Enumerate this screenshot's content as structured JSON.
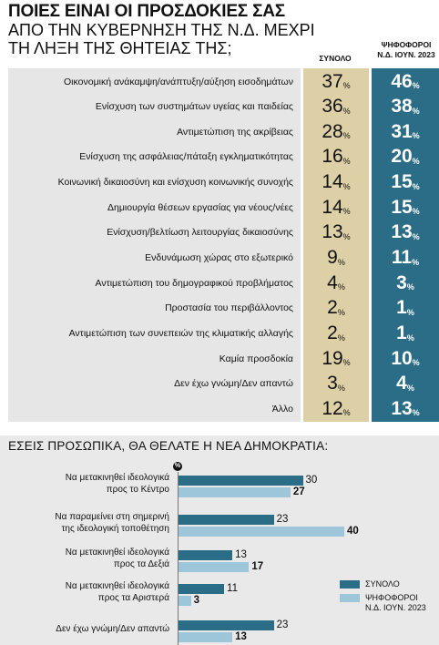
{
  "header": {
    "title_line1": "ΠΟΙΕΣ ΕΙΝΑΙ ΟΙ ΠΡΟΣΔΟΚΙΕΣ ΣΑΣ",
    "title_line2": "ΑΠΟ ΤΗΝ ΚΥΒΕΡΝΗΣΗ ΤΗΣ Ν.Δ. ΜΕΧΡΙ",
    "title_line3": "ΤΗ ΛΗΞΗ ΤΗΣ ΘΗΤΕΙΑΣ ΤΗΣ;",
    "col_total": "ΣΥΝΟΛΟ",
    "col_voters_line1": "ΨΗΦΟΦΟΡΟΙ",
    "col_voters_line2": "Ν.Δ. ΙΟΥΝ. 2023",
    "percent_sign": "%"
  },
  "chart_data": [
    {
      "type": "table",
      "title": "ΠΟΙΕΣ ΕΙΝΑΙ ΟΙ ΠΡΟΣΔΟΚΙΕΣ ΣΑΣ ΑΠΟ ΤΗΝ ΚΥΒΕΡΝΗΣΗ ΤΗΣ Ν.Δ. ΜΕΧΡΙ ΤΗ ΛΗΞΗ ΤΗΣ ΘΗΤΕΙΑΣ ΤΗΣ;",
      "columns": [
        "ΣΥΝΟΛΟ",
        "ΨΗΦΟΦΟΡΟΙ Ν.Δ. ΙΟΥΝ. 2023"
      ],
      "unit": "%",
      "rows": [
        {
          "label": "Οικονομική ανάκαμψη/ανάπτυξη/αύξηση εισοδημάτων",
          "total": 37,
          "voters": 46
        },
        {
          "label": "Ενίσχυση των συστημάτων υγείας και παιδείας",
          "total": 36,
          "voters": 38
        },
        {
          "label": "Αντιμετώπιση της ακρίβειας",
          "total": 28,
          "voters": 31
        },
        {
          "label": "Ενίσχυση της ασφάλειας/πάταξη εγκληματικότητας",
          "total": 16,
          "voters": 20
        },
        {
          "label": "Κοινωνική δικαιοσύνη και ενίσχυση κοινωνικής συνοχής",
          "total": 14,
          "voters": 15
        },
        {
          "label": "Δημιουργία θέσεων εργασίας για νέους/νέες",
          "total": 14,
          "voters": 15
        },
        {
          "label": "Ενίσχυση/βελτίωση λειτουργίας δικαιοσύνης",
          "total": 13,
          "voters": 13
        },
        {
          "label": "Ενδυνάμωση χώρας στο εξωτερικό",
          "total": 9,
          "voters": 11
        },
        {
          "label": "Αντιμετώπιση του δημογραφικού προβλήματος",
          "total": 4,
          "voters": 3
        },
        {
          "label": "Προστασία του περιβάλλοντος",
          "total": 2,
          "voters": 1
        },
        {
          "label": "Αντιμετώπιση των συνεπειών της κλιματικής αλλαγής",
          "total": 2,
          "voters": 1
        },
        {
          "label": "Καμία προσδοκία",
          "total": 19,
          "voters": 10
        },
        {
          "label": "Δεν έχω γνώμη/Δεν απαντώ",
          "total": 3,
          "voters": 4
        },
        {
          "label": "Άλλο",
          "total": 12,
          "voters": 13
        }
      ]
    },
    {
      "type": "bar",
      "orientation": "horizontal",
      "title": "ΕΣΕΙΣ ΠΡΟΣΩΠΙΚΑ, ΘΑ ΘΕΛΑΤΕ Η ΝΕΑ ΔΗΜΟΚΡΑΤΙΑ:",
      "unit": "%",
      "categories": [
        [
          "Να μετακινηθεί ιδεολογικά",
          "προς το Κέντρο"
        ],
        [
          "Να παραμείνει στη σημερινή",
          "της ιδεολογική τοποθέτηση"
        ],
        [
          "Να μετακινηθεί ιδεολογικά",
          "προς τα Δεξιά"
        ],
        [
          "Να μετακινηθεί ιδεολογικά",
          "προς τα Αριστερά"
        ],
        [
          "Δεν έχω γνώμη/Δεν απαντώ"
        ]
      ],
      "series": [
        {
          "name": "ΣΥΝΟΛΟ",
          "color": "#2b6d86",
          "values": [
            30,
            23,
            13,
            11,
            23
          ]
        },
        {
          "name_line1": "ΨΗΦΟΦΟΡΟΙ",
          "name_line2": "Ν.Δ. ΙΟΥΝ. 2023",
          "color": "#9ec6da",
          "values": [
            27,
            40,
            17,
            3,
            13
          ]
        }
      ],
      "legend": "right"
    }
  ]
}
